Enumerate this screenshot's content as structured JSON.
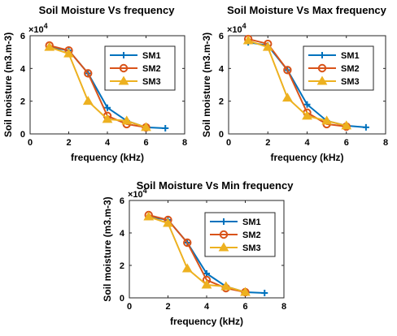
{
  "chart_data": [
    {
      "type": "line",
      "title": "Soil Moisture Vs frequency",
      "xlabel": "frequency (kHz)",
      "ylabel": "Soil moisture (m3.m-3)",
      "y_multiplier_label": "×10",
      "y_multiplier_exp": "4",
      "xlim": [
        0,
        8
      ],
      "ylim": [
        0,
        6
      ],
      "xticks": [
        0,
        2,
        4,
        6,
        8
      ],
      "yticks": [
        0,
        2,
        4,
        6
      ],
      "legend_position": "top-right",
      "series": [
        {
          "name": "SM1",
          "color": "#0072BD",
          "marker": "plus",
          "x": [
            1,
            2,
            3,
            4,
            5,
            6,
            7
          ],
          "y": [
            5.3,
            5.1,
            3.7,
            1.6,
            0.8,
            0.4,
            0.35
          ]
        },
        {
          "name": "SM2",
          "color": "#D95319",
          "marker": "circle",
          "x": [
            1,
            2,
            3,
            4,
            5,
            6
          ],
          "y": [
            5.4,
            5.1,
            3.7,
            1.1,
            0.6,
            0.4
          ]
        },
        {
          "name": "SM3",
          "color": "#EDB120",
          "marker": "triangle",
          "x": [
            1,
            2,
            3,
            4,
            5,
            6
          ],
          "y": [
            5.3,
            4.9,
            2.0,
            0.9,
            0.8,
            0.4
          ]
        }
      ]
    },
    {
      "type": "line",
      "title": "Soil Moisture Vs Max frequency",
      "xlabel": "frequency (kHz)",
      "ylabel": "Soil moisture (m3.m-3)",
      "y_multiplier_label": "×10",
      "y_multiplier_exp": "4",
      "xlim": [
        0,
        8
      ],
      "ylim": [
        0,
        6
      ],
      "xticks": [
        0,
        2,
        4,
        6,
        8
      ],
      "yticks": [
        0,
        2,
        4,
        6
      ],
      "legend_position": "top-right",
      "series": [
        {
          "name": "SM1",
          "color": "#0072BD",
          "marker": "plus",
          "x": [
            1,
            2,
            3,
            4,
            5,
            6,
            7
          ],
          "y": [
            5.6,
            5.4,
            3.9,
            1.8,
            0.8,
            0.5,
            0.4
          ]
        },
        {
          "name": "SM2",
          "color": "#D95319",
          "marker": "circle",
          "x": [
            1,
            2,
            3,
            4,
            5,
            6
          ],
          "y": [
            5.8,
            5.5,
            3.9,
            1.3,
            0.6,
            0.45
          ]
        },
        {
          "name": "SM3",
          "color": "#EDB120",
          "marker": "triangle",
          "x": [
            1,
            2,
            3,
            4,
            5,
            6
          ],
          "y": [
            5.7,
            5.3,
            2.2,
            1.1,
            0.8,
            0.5
          ]
        }
      ]
    },
    {
      "type": "line",
      "title": "Soil Moisture Vs Min frequency",
      "xlabel": "frequency (kHz)",
      "ylabel": "Soil moisture (m3.m-3)",
      "y_multiplier_label": "×10",
      "y_multiplier_exp": "4",
      "xlim": [
        0,
        8
      ],
      "ylim": [
        0,
        6
      ],
      "xticks": [
        0,
        2,
        4,
        6,
        8
      ],
      "yticks": [
        0,
        2,
        4,
        6
      ],
      "legend_position": "top-right",
      "series": [
        {
          "name": "SM1",
          "color": "#0072BD",
          "marker": "plus",
          "x": [
            1,
            2,
            3,
            4,
            5,
            6,
            7
          ],
          "y": [
            5.0,
            4.8,
            3.4,
            1.5,
            0.7,
            0.35,
            0.3
          ]
        },
        {
          "name": "SM2",
          "color": "#D95319",
          "marker": "circle",
          "x": [
            1,
            2,
            3,
            4,
            5,
            6
          ],
          "y": [
            5.1,
            4.8,
            3.4,
            1.1,
            0.6,
            0.35
          ]
        },
        {
          "name": "SM3",
          "color": "#EDB120",
          "marker": "triangle",
          "x": [
            1,
            2,
            3,
            4,
            5,
            6
          ],
          "y": [
            5.0,
            4.6,
            1.8,
            0.8,
            0.7,
            0.35
          ]
        }
      ]
    }
  ]
}
